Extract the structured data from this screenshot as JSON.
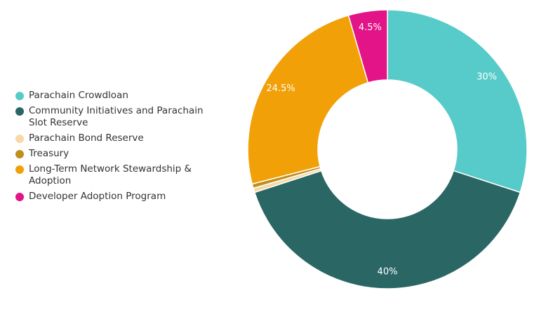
{
  "chart_data": {
    "type": "pie",
    "subtype": "donut",
    "title": "",
    "legend_position": "left",
    "slices": [
      {
        "label": "Parachain Crowdloan",
        "value": 30,
        "display": "30%",
        "color": "#57cbc9"
      },
      {
        "label": "Community Initiatives and Parachain Slot Reserve",
        "value": 40,
        "display": "40%",
        "color": "#2a6664"
      },
      {
        "label": "Parachain Bond Reserve",
        "value": 0.5,
        "display": "",
        "color": "#f6d9a4"
      },
      {
        "label": "Treasury",
        "value": 0.5,
        "display": "",
        "color": "#bf8f1e"
      },
      {
        "label": "Long-Term Network Stewardship & Adoption",
        "value": 24.5,
        "display": "24.5%",
        "color": "#f2a007"
      },
      {
        "label": "Developer Adoption Program",
        "value": 4.5,
        "display": "4.5%",
        "color": "#e31487"
      }
    ]
  }
}
